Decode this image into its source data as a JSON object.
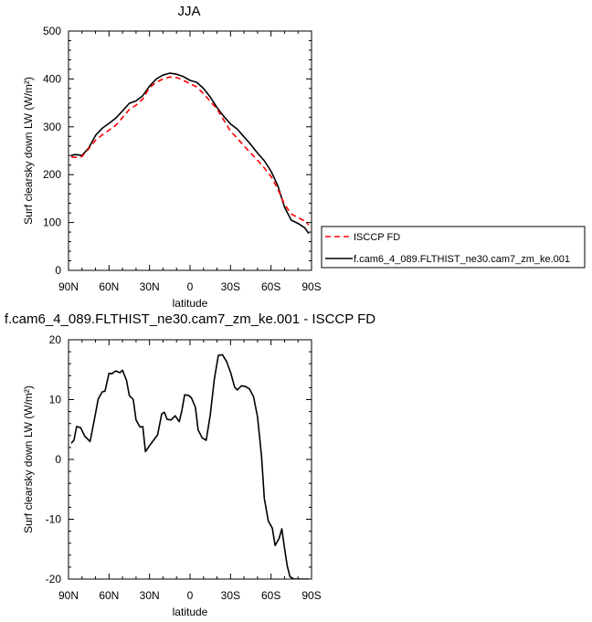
{
  "chart_data": [
    {
      "type": "line",
      "title": "JJA",
      "xlabel": "latitude",
      "ylabel": "Surf clearsky down LW (W/m²)",
      "xlim": [
        90,
        -90
      ],
      "ylim": [
        0,
        500
      ],
      "xticks": [
        "90N",
        "60N",
        "30N",
        "0",
        "30S",
        "60S",
        "90S"
      ],
      "xtick_values": [
        90,
        60,
        30,
        0,
        -30,
        -60,
        -90
      ],
      "yticks": [
        0,
        100,
        200,
        300,
        400,
        500
      ],
      "legend_position": "right",
      "series": [
        {
          "name": "ISCCP FD",
          "color": "#ff0000",
          "style": "dashed",
          "x": [
            88,
            85,
            80,
            75,
            70,
            65,
            60,
            55,
            50,
            45,
            40,
            35,
            30,
            25,
            20,
            15,
            10,
            5,
            0,
            -5,
            -10,
            -15,
            -20,
            -25,
            -30,
            -35,
            -40,
            -45,
            -50,
            -55,
            -60,
            -65,
            -70,
            -75,
            -80,
            -85,
            -88
          ],
          "y": [
            237,
            236,
            238,
            254,
            272,
            283,
            293,
            303,
            319,
            336,
            345,
            358,
            382,
            393,
            400,
            404,
            403,
            397,
            390,
            383,
            369,
            353,
            337,
            314,
            291,
            276,
            260,
            245,
            230,
            214,
            196,
            170,
            138,
            118,
            110,
            103,
            95
          ]
        },
        {
          "name": "f.cam6_4_089.FLTHIST_ne30.cam7_zm_ke.001",
          "color": "#000000",
          "style": "solid",
          "x": [
            88,
            85,
            80,
            75,
            70,
            65,
            60,
            55,
            50,
            45,
            40,
            35,
            30,
            25,
            20,
            15,
            10,
            5,
            0,
            -5,
            -10,
            -15,
            -20,
            -25,
            -30,
            -35,
            -40,
            -45,
            -50,
            -55,
            -60,
            -65,
            -70,
            -75,
            -80,
            -85,
            -88
          ],
          "y": [
            240,
            242,
            240,
            256,
            282,
            297,
            307,
            318,
            333,
            349,
            354,
            365,
            385,
            400,
            408,
            412,
            410,
            405,
            397,
            393,
            380,
            362,
            340,
            322,
            306,
            295,
            279,
            263,
            245,
            229,
            207,
            177,
            132,
            105,
            98,
            89,
            77
          ]
        }
      ]
    },
    {
      "type": "line",
      "title": "f.cam6_4_089.FLTHIST_ne30.cam7_zm_ke.001 - ISCCP FD",
      "xlabel": "latitude",
      "ylabel": "Surf clearsky down LW (W/m²)",
      "xlim": [
        90,
        -90
      ],
      "ylim": [
        -20,
        20
      ],
      "xticks": [
        "90N",
        "60N",
        "30N",
        "0",
        "30S",
        "60S",
        "90S"
      ],
      "xtick_values": [
        90,
        60,
        30,
        0,
        -30,
        -60,
        -90
      ],
      "yticks": [
        -20,
        -10,
        0,
        10,
        20
      ],
      "series": [
        {
          "color": "#000000",
          "style": "solid",
          "x": [
            88,
            86,
            84,
            81,
            78,
            74,
            71,
            68,
            65,
            63,
            60,
            58,
            55,
            52,
            50,
            47,
            45,
            42,
            40,
            37,
            35,
            33,
            30,
            27,
            24,
            21,
            19,
            17,
            14,
            11,
            8,
            6,
            4,
            1,
            -1,
            -4,
            -6,
            -9,
            -12,
            -15,
            -18,
            -21,
            -24,
            -27,
            -30,
            -33,
            -35,
            -38,
            -41,
            -44,
            -47,
            -50,
            -53,
            -55,
            -58,
            -61,
            -63,
            -66,
            -68,
            -70,
            -72,
            -74,
            -77,
            -80,
            -82,
            -84,
            -86,
            -88
          ],
          "y": [
            2.7,
            3.2,
            5.5,
            5.3,
            3.9,
            3.0,
            6.5,
            10.1,
            11.3,
            11.4,
            14.4,
            14.3,
            14.8,
            14.5,
            14.9,
            13.2,
            10.7,
            10.0,
            6.6,
            5.4,
            5.5,
            1.3,
            2.3,
            3.2,
            4.1,
            7.6,
            7.9,
            6.7,
            6.6,
            7.3,
            6.3,
            8.2,
            10.8,
            10.7,
            10.3,
            8.7,
            4.9,
            3.6,
            3.2,
            7.5,
            13.4,
            17.4,
            17.5,
            16.4,
            14.6,
            12.1,
            11.6,
            12.3,
            12.2,
            11.8,
            10.5,
            7.1,
            0.5,
            -6.5,
            -10.3,
            -11.5,
            -14.4,
            -13.2,
            -11.6,
            -14.8,
            -17.8,
            -19.6,
            -20,
            -20,
            -20,
            -20,
            -20,
            -20
          ]
        }
      ]
    }
  ]
}
